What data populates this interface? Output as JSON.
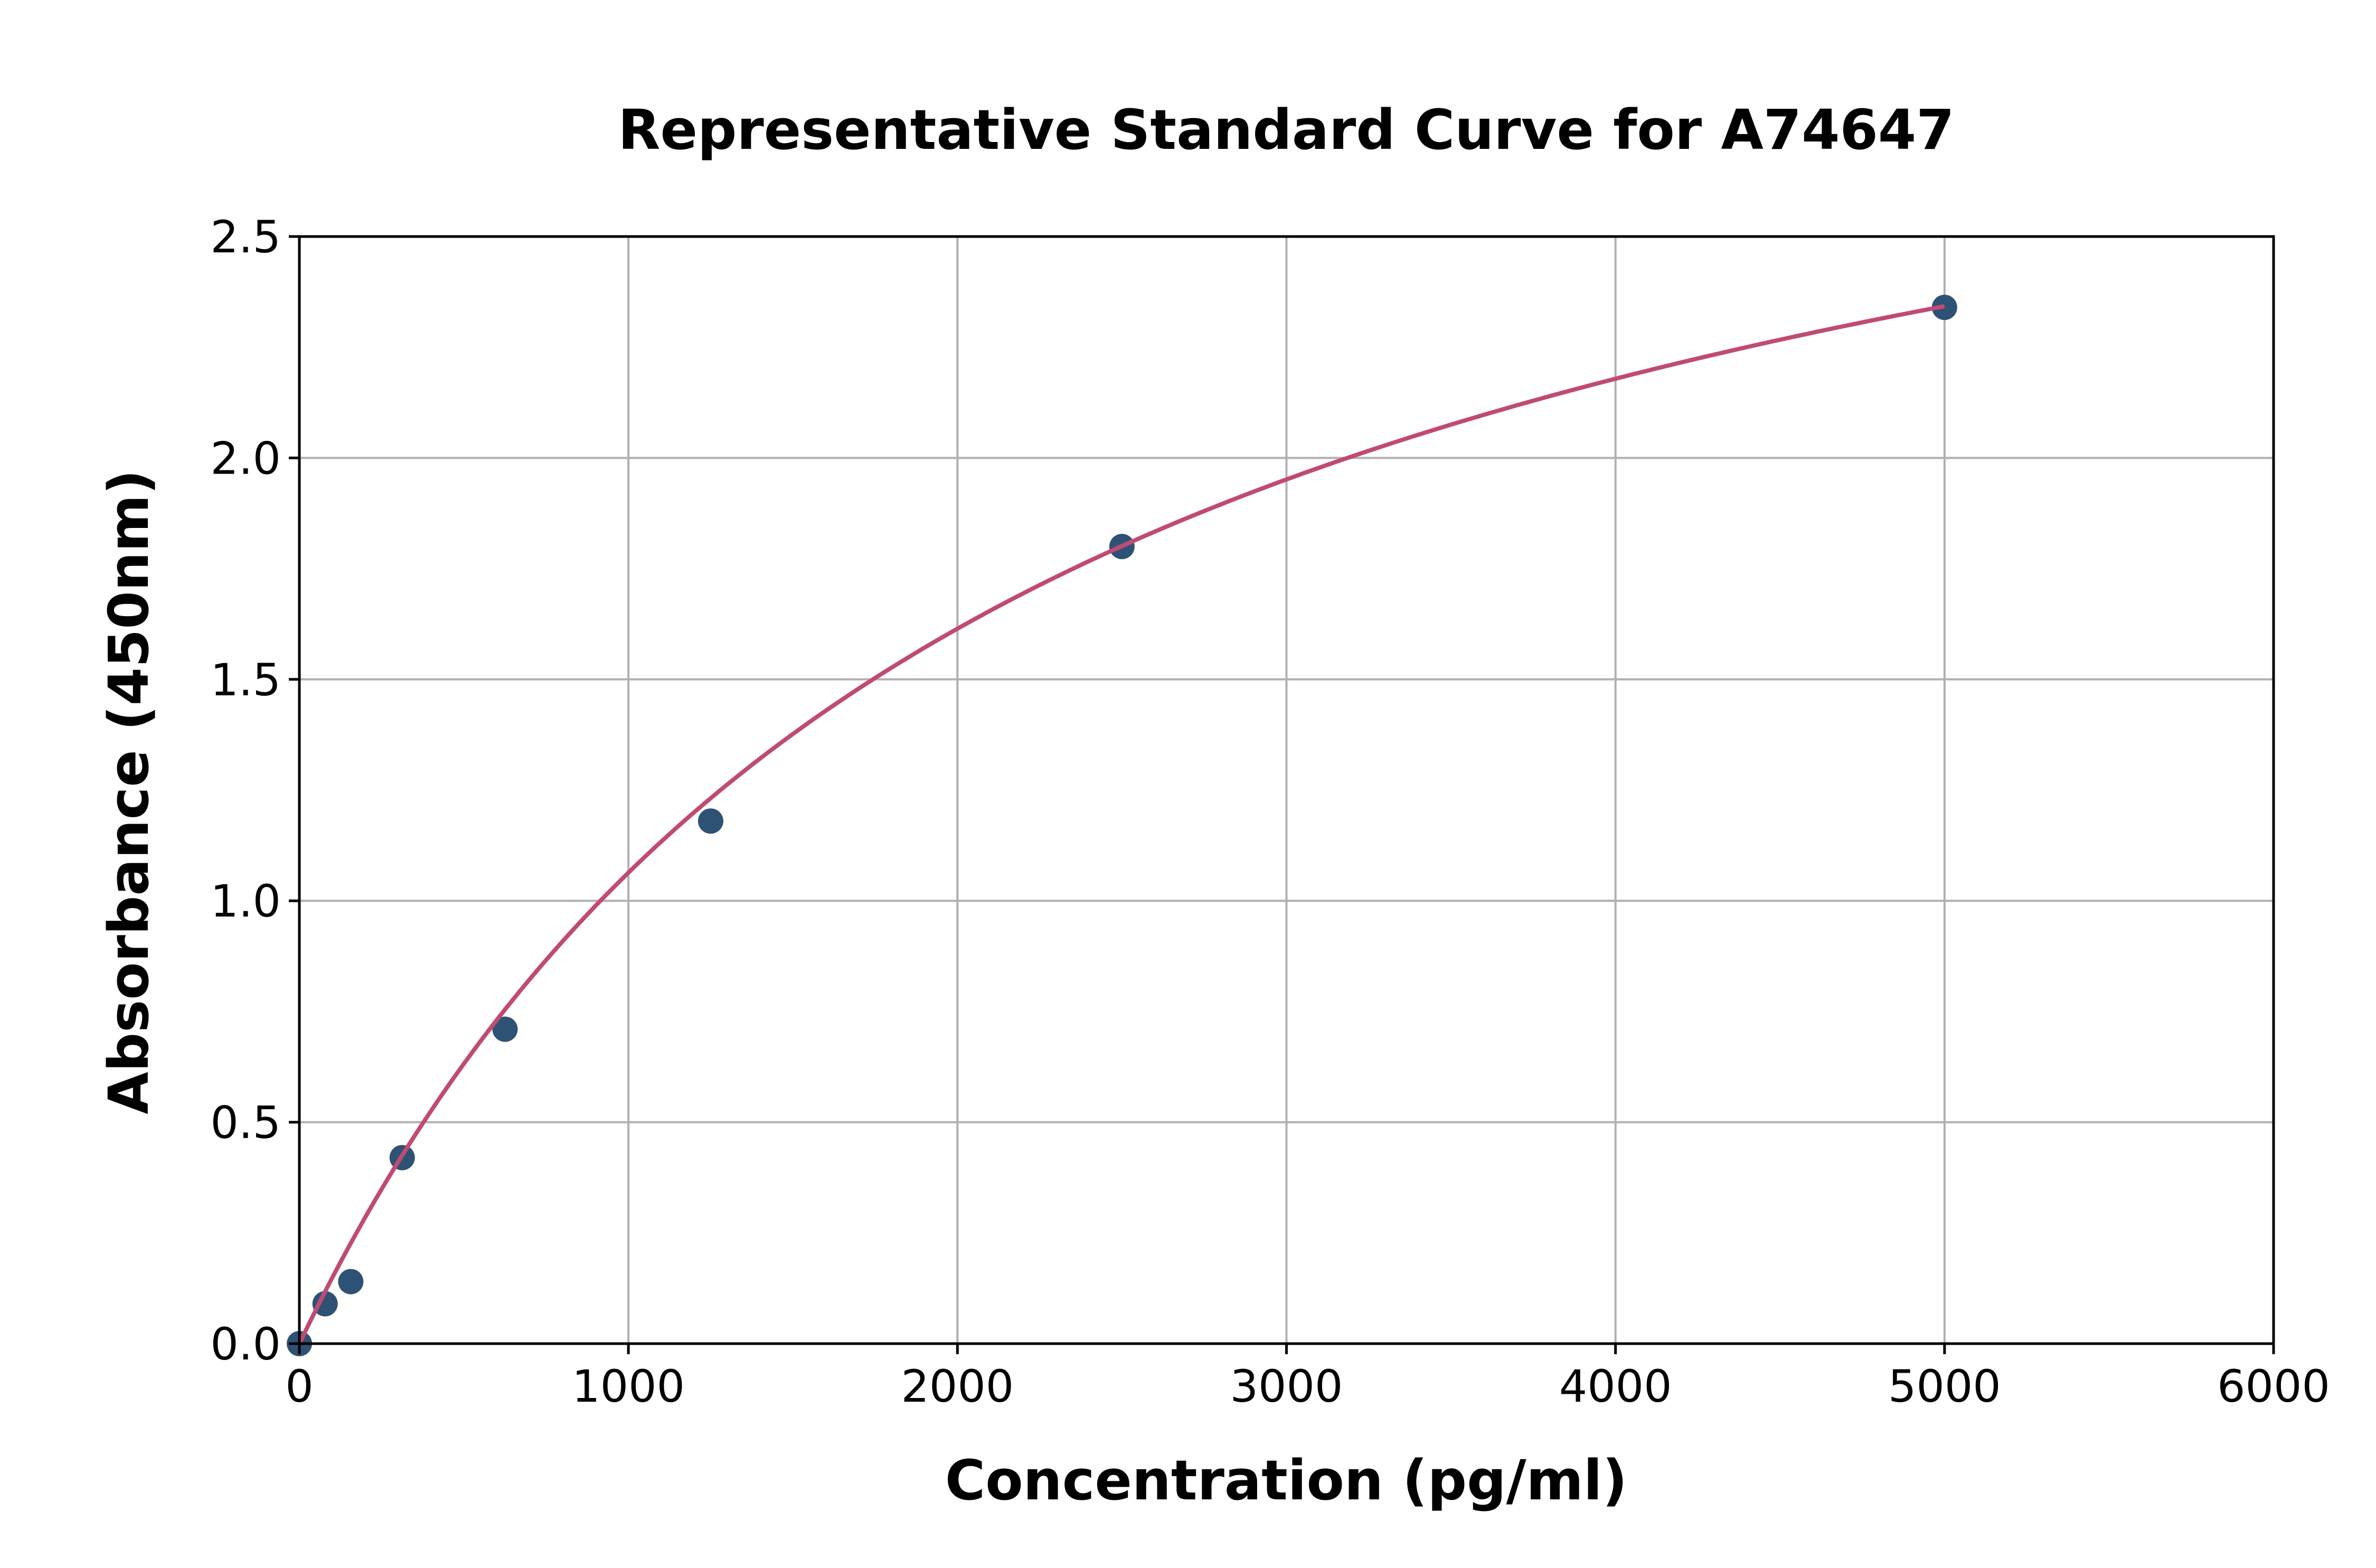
{
  "chart_data": {
    "type": "scatter",
    "title": "Representative Standard Curve for A74647",
    "xlabel": "Concentration (pg/ml)",
    "ylabel": "Absorbance (450nm)",
    "xlim": [
      0,
      6000
    ],
    "ylim": [
      0,
      2.5
    ],
    "xticks": [
      "0",
      "1000",
      "2000",
      "3000",
      "4000",
      "5000",
      "6000"
    ],
    "yticks": [
      "0.0",
      "0.5",
      "1.0",
      "1.5",
      "2.0",
      "2.5"
    ],
    "grid": true,
    "legend": "none",
    "points": {
      "x": [
        0,
        78.125,
        156.25,
        312.5,
        625,
        1250,
        2500,
        5000
      ],
      "y": [
        0.0,
        0.09,
        0.14,
        0.42,
        0.71,
        1.18,
        1.8,
        2.34
      ]
    },
    "fit_curve": "smooth saturating fit through standards",
    "colors": {
      "points": "#2e5275",
      "curve": "#c04b72",
      "grid": "#b0b0b0"
    }
  }
}
